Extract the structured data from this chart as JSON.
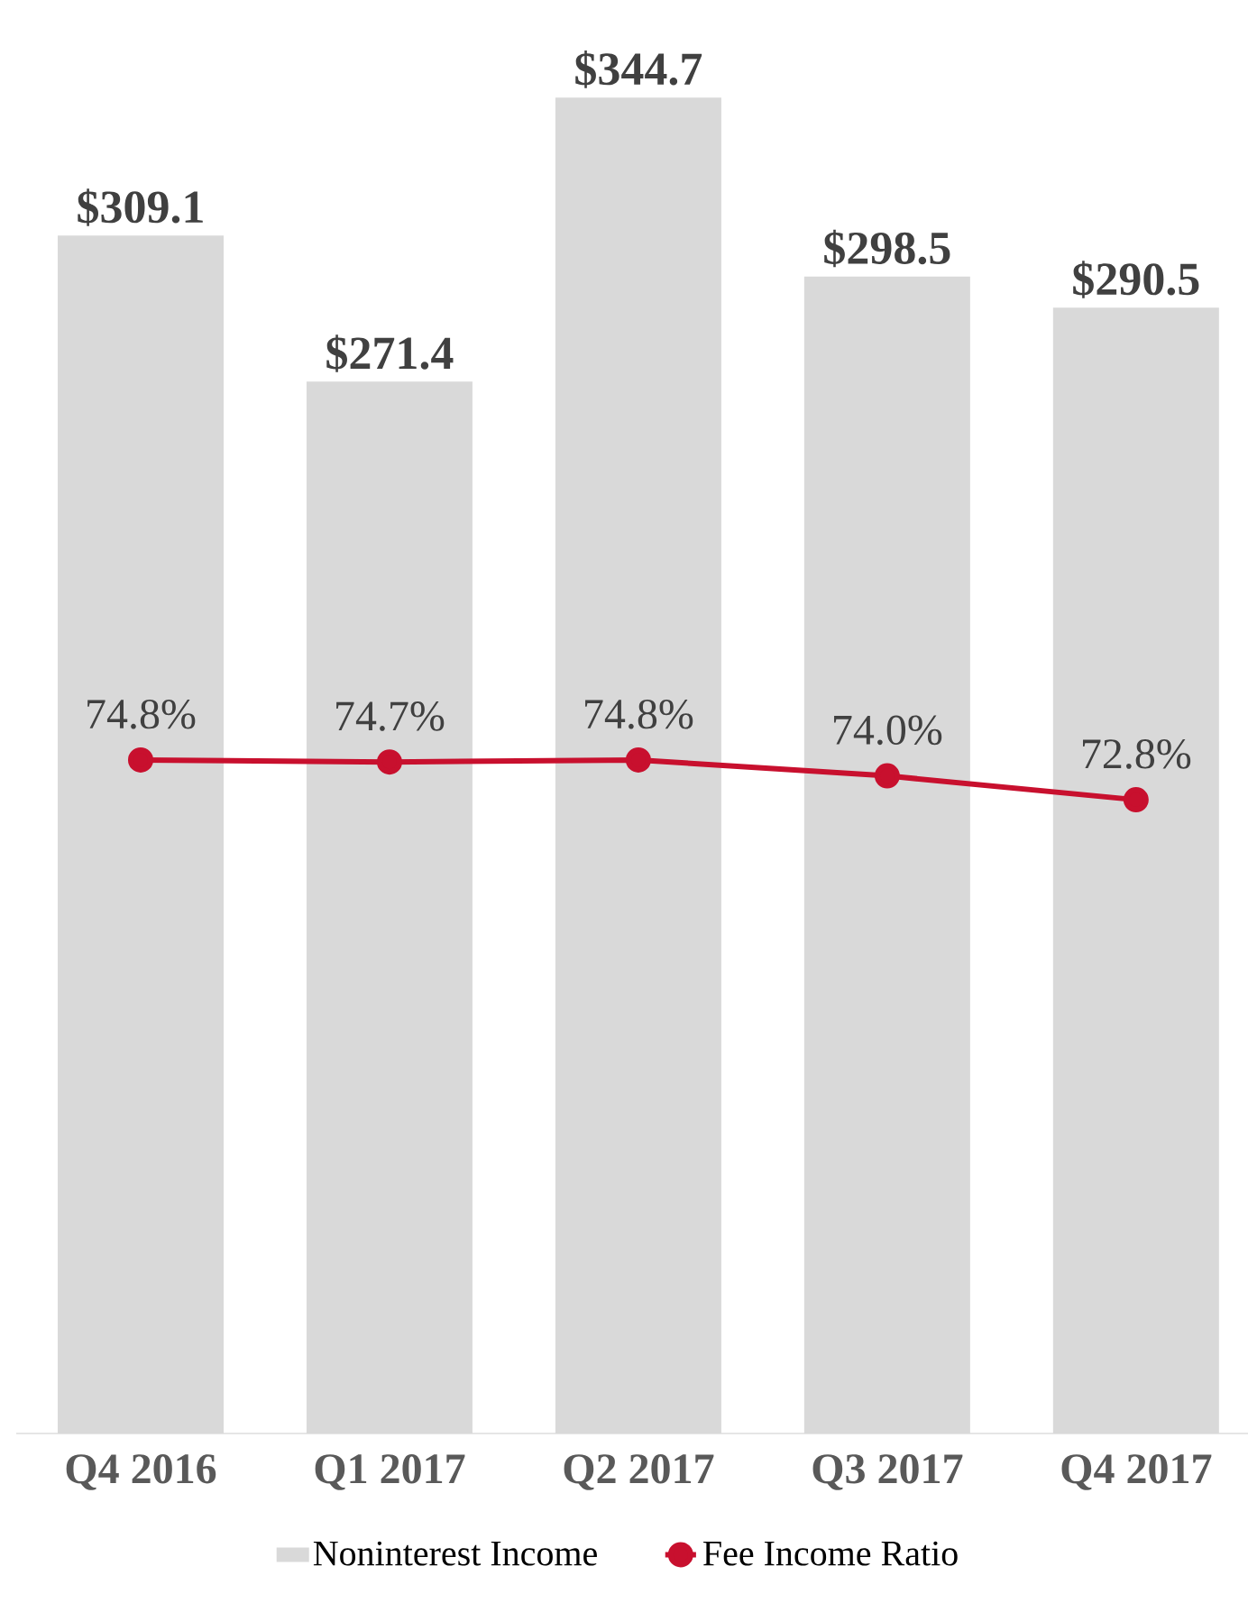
{
  "chart_data": {
    "type": "bar",
    "categories": [
      "Q4 2016",
      "Q1 2017",
      "Q2 2017",
      "Q3 2017",
      "Q4 2017"
    ],
    "series": [
      {
        "name": "Noninterest Income",
        "color": "#d9d9d9",
        "values": [
          309.1,
          271.4,
          344.7,
          298.5,
          290.5
        ],
        "value_labels": [
          "$309.1",
          "$271.4",
          "$344.7",
          "$298.5",
          "$290.5"
        ]
      },
      {
        "name": "Fee Income Ratio",
        "type": "line",
        "axis": "y2",
        "color": "#c8102e",
        "values": [
          74.8,
          74.7,
          74.8,
          74.0,
          72.8
        ],
        "value_labels": [
          "74.8%",
          "74.7%",
          "74.8%",
          "74.0%",
          "72.8%"
        ]
      }
    ],
    "marker": "circle",
    "legend": "bottom",
    "tick_labels": "x"
  }
}
